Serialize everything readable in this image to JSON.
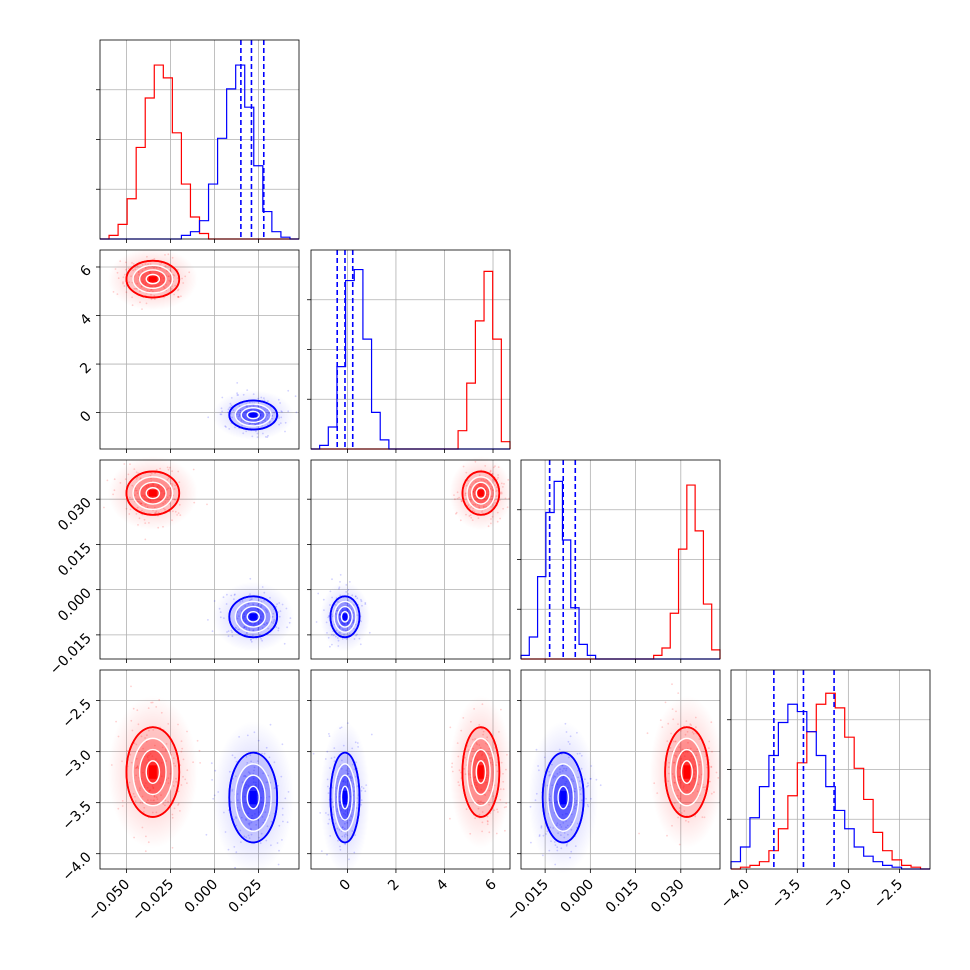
{
  "colors": {
    "series_a": "#ff0000",
    "series_b": "#0000ff",
    "grid": "#b0b0b0",
    "axes": "#000000"
  },
  "chart_data": {
    "type": "corner",
    "title": "",
    "grid": true,
    "parameters": [
      {
        "index": 0,
        "xlabel": "",
        "range": [
          -0.065,
          0.048
        ],
        "xticks": [
          -0.05,
          -0.025,
          0.0,
          0.025
        ],
        "xtick_labels": [
          "−0.050",
          "−0.025",
          "0.000",
          "0.025"
        ]
      },
      {
        "index": 1,
        "xlabel": "",
        "range": [
          -1.5,
          6.7
        ],
        "xticks": [
          0,
          2,
          4,
          6
        ],
        "xtick_labels": [
          "0",
          "2",
          "4",
          "6"
        ],
        "yticks": [
          0,
          2,
          4,
          6
        ],
        "ytick_labels": [
          "0",
          "2",
          "4",
          "6"
        ]
      },
      {
        "index": 2,
        "xlabel": "",
        "range": [
          -0.023,
          0.043
        ],
        "xticks": [
          -0.015,
          0.0,
          0.015,
          0.03
        ],
        "xtick_labels": [
          "−0.015",
          "0.000",
          "0.015",
          "0.030"
        ],
        "yticks": [
          -0.015,
          0.0,
          0.015,
          0.03
        ],
        "ytick_labels": [
          "−0.015",
          "0.000",
          "0.015",
          "0.030"
        ]
      },
      {
        "index": 3,
        "xlabel": "",
        "range": [
          -4.15,
          -2.2
        ],
        "xticks": [
          -4.0,
          -3.5,
          -3.0,
          -2.5
        ],
        "xtick_labels": [
          "−4.0",
          "−3.5",
          "−3.0",
          "−2.5"
        ],
        "yticks": [
          -4.0,
          -3.5,
          -3.0,
          -2.5
        ],
        "ytick_labels": [
          "−4.0",
          "−3.5",
          "−3.0",
          "−2.5"
        ]
      }
    ],
    "series": [
      {
        "id": "red",
        "color": "#ff0000",
        "means": [
          -0.035,
          5.5,
          0.032,
          -3.2
        ],
        "sigmas": [
          0.0075,
          0.38,
          0.0036,
          0.22
        ],
        "quantile_lines": false,
        "hist": [
          {
            "edges": [
              -0.065,
              0.048
            ],
            "counts": [
              0,
              0.02,
              0.08,
              0.22,
              0.5,
              0.77,
              0.95,
              0.88,
              0.58,
              0.3,
              0.12,
              0.03,
              0,
              0,
              0,
              0,
              0,
              0,
              0,
              0,
              0,
              0
            ]
          },
          {
            "edges": [
              -1.5,
              6.7
            ],
            "counts": [
              0,
              0,
              0,
              0,
              0,
              0,
              0,
              0,
              0,
              0,
              0,
              0,
              0,
              0,
              0,
              0,
              0,
              0.1,
              0.36,
              0.7,
              0.97,
              0.6,
              0.04
            ]
          },
          {
            "edges": [
              -0.023,
              0.043
            ],
            "counts": [
              0,
              0,
              0,
              0,
              0,
              0,
              0,
              0,
              0,
              0,
              0,
              0,
              0,
              0,
              0,
              0,
              0.02,
              0.06,
              0.25,
              0.6,
              0.95,
              0.7,
              0.3,
              0.05
            ]
          },
          {
            "edges": [
              -4.15,
              -2.2
            ],
            "counts": [
              0,
              0.01,
              0.02,
              0.04,
              0.1,
              0.22,
              0.4,
              0.58,
              0.75,
              0.9,
              0.96,
              0.88,
              0.72,
              0.55,
              0.38,
              0.2,
              0.1,
              0.05,
              0.02,
              0.01,
              0
            ]
          }
        ]
      },
      {
        "id": "blue",
        "color": "#0000ff",
        "means": [
          0.022,
          -0.1,
          -0.009,
          -3.45
        ],
        "sigmas": [
          0.0068,
          0.3,
          0.0034,
          0.22
        ],
        "quantile_lines": true,
        "quantiles": [
          [
            0.015,
            0.021,
            0.028
          ],
          [
            -0.42,
            -0.1,
            0.22
          ],
          [
            -0.0135,
            -0.009,
            -0.005
          ],
          [
            -3.73,
            -3.44,
            -3.14
          ]
        ],
        "hist": [
          {
            "edges": [
              -0.065,
              0.048
            ],
            "counts": [
              0,
              0,
              0,
              0,
              0,
              0,
              0,
              0,
              0,
              0.02,
              0.04,
              0.1,
              0.3,
              0.55,
              0.82,
              0.95,
              0.72,
              0.4,
              0.15,
              0.04,
              0.01,
              0
            ]
          },
          {
            "edges": [
              -1.5,
              6.7
            ],
            "counts": [
              0,
              0.02,
              0.12,
              0.45,
              0.92,
              0.98,
              0.6,
              0.2,
              0.05,
              0,
              0,
              0,
              0,
              0,
              0,
              0,
              0,
              0,
              0,
              0,
              0,
              0,
              0
            ]
          },
          {
            "edges": [
              -0.023,
              0.043
            ],
            "counts": [
              0.02,
              0.12,
              0.45,
              0.8,
              0.97,
              0.65,
              0.28,
              0.08,
              0.02,
              0,
              0,
              0,
              0,
              0,
              0,
              0,
              0,
              0,
              0,
              0,
              0,
              0,
              0,
              0
            ]
          },
          {
            "edges": [
              -4.15,
              -2.2
            ],
            "counts": [
              0.04,
              0.12,
              0.28,
              0.45,
              0.62,
              0.8,
              0.9,
              0.86,
              0.75,
              0.62,
              0.45,
              0.32,
              0.22,
              0.12,
              0.07,
              0.04,
              0.02,
              0.01,
              0,
              0,
              0
            ]
          }
        ]
      }
    ]
  }
}
